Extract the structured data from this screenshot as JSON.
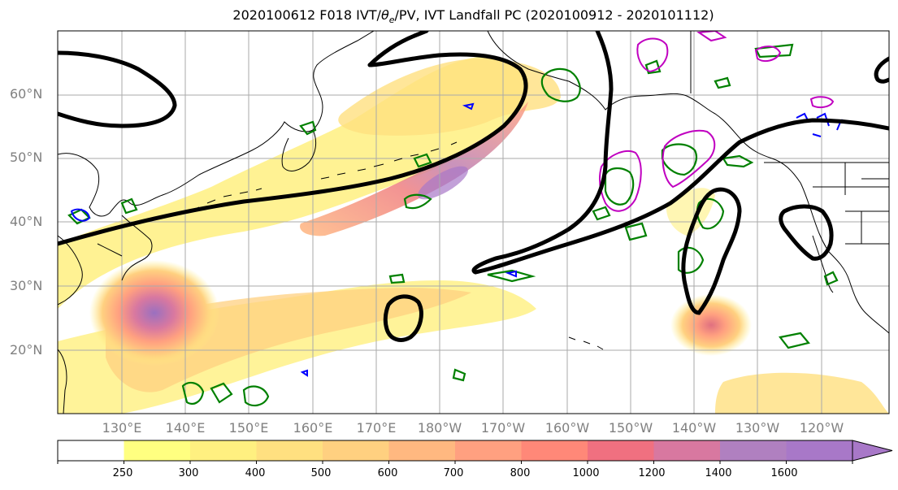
{
  "figure": {
    "title_prefix": "2020100612 F018 IVT/",
    "title_theta": "θ",
    "title_theta_sub": "e",
    "title_suffix": "/PV, IVT Landfall PC (2020100912 - 2020101112)"
  },
  "axes": {
    "lat_labels": [
      "60°N",
      "50°N",
      "40°N",
      "30°N",
      "20°N"
    ],
    "lon_labels": [
      "130°E",
      "140°E",
      "150°E",
      "160°E",
      "170°E",
      "180°W",
      "170°W",
      "160°W",
      "150°W",
      "140°W",
      "130°W",
      "120°W"
    ]
  },
  "colorbar": {
    "ticks": [
      "250",
      "300",
      "400",
      "500",
      "600",
      "700",
      "800",
      "1000",
      "1200",
      "1400",
      "1600"
    ],
    "colors": [
      "#ffffff",
      "#ffff80",
      "#fff080",
      "#ffe080",
      "#ffd080",
      "#ffb880",
      "#ffa080",
      "#ff8878",
      "#f07080",
      "#d878a0",
      "#b080c0",
      "#a878c8"
    ],
    "extend": "max"
  },
  "colors": {
    "pv_contour": "#000000",
    "theta_contour": "#008000",
    "contour_magenta": "#c000c0",
    "contour_blue": "#0000ff",
    "grid": "#aaaaaa",
    "label_grey": "#808080"
  }
}
